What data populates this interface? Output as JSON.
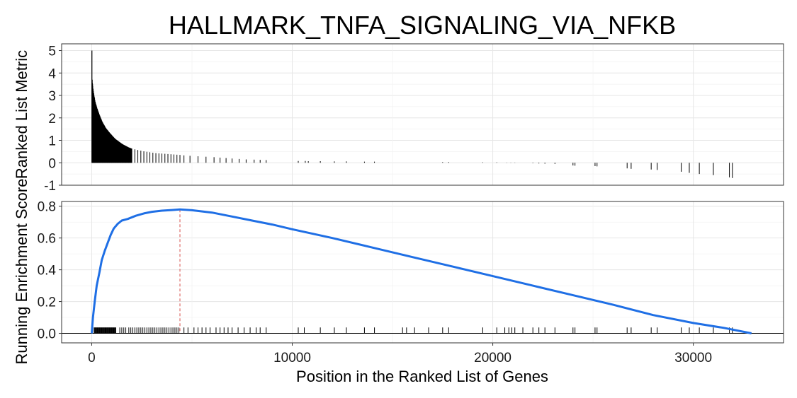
{
  "chart_data": [
    {
      "panel": "ranked-list-metric",
      "type": "bar",
      "title": "HALLMARK_TNFA_SIGNALING_VIA_NFKB",
      "ylabel": "Ranked List Metric",
      "xlim": [
        -1500,
        34500
      ],
      "ylim": [
        -1,
        5.3
      ],
      "yticks": [
        -1,
        0,
        1,
        2,
        3,
        4,
        5
      ],
      "grid": true,
      "bars": [
        {
          "x": 10,
          "y": 5.0
        },
        {
          "x": 25,
          "y": 3.7
        },
        {
          "x": 45,
          "y": 3.5
        },
        {
          "x": 70,
          "y": 3.3
        },
        {
          "x": 100,
          "y": 3.1
        },
        {
          "x": 140,
          "y": 2.9
        },
        {
          "x": 180,
          "y": 2.7
        },
        {
          "x": 230,
          "y": 2.55
        },
        {
          "x": 280,
          "y": 2.4
        },
        {
          "x": 340,
          "y": 2.25
        },
        {
          "x": 400,
          "y": 2.1
        },
        {
          "x": 470,
          "y": 1.95
        },
        {
          "x": 540,
          "y": 1.8
        },
        {
          "x": 620,
          "y": 1.68
        },
        {
          "x": 700,
          "y": 1.55
        },
        {
          "x": 790,
          "y": 1.45
        },
        {
          "x": 880,
          "y": 1.35
        },
        {
          "x": 980,
          "y": 1.25
        },
        {
          "x": 1080,
          "y": 1.15
        },
        {
          "x": 1190,
          "y": 1.05
        },
        {
          "x": 1300,
          "y": 0.98
        },
        {
          "x": 1420,
          "y": 0.9
        },
        {
          "x": 1550,
          "y": 0.82
        },
        {
          "x": 1700,
          "y": 0.75
        },
        {
          "x": 1850,
          "y": 0.68
        },
        {
          "x": 2000,
          "y": 0.63
        },
        {
          "x": 2150,
          "y": 0.6
        },
        {
          "x": 2300,
          "y": 0.57
        },
        {
          "x": 2450,
          "y": 0.54
        },
        {
          "x": 2600,
          "y": 0.51
        },
        {
          "x": 2750,
          "y": 0.49
        },
        {
          "x": 2900,
          "y": 0.47
        },
        {
          "x": 3050,
          "y": 0.45
        },
        {
          "x": 3200,
          "y": 0.43
        },
        {
          "x": 3350,
          "y": 0.42
        },
        {
          "x": 3500,
          "y": 0.41
        },
        {
          "x": 3650,
          "y": 0.4
        },
        {
          "x": 3800,
          "y": 0.39
        },
        {
          "x": 3950,
          "y": 0.38
        },
        {
          "x": 4100,
          "y": 0.37
        },
        {
          "x": 4250,
          "y": 0.36
        },
        {
          "x": 4400,
          "y": 0.35
        },
        {
          "x": 4600,
          "y": 0.33
        },
        {
          "x": 4900,
          "y": 0.31
        },
        {
          "x": 5300,
          "y": 0.29
        },
        {
          "x": 5700,
          "y": 0.27
        },
        {
          "x": 6100,
          "y": 0.25
        },
        {
          "x": 6400,
          "y": 0.23
        },
        {
          "x": 6700,
          "y": 0.21
        },
        {
          "x": 7000,
          "y": 0.19
        },
        {
          "x": 7350,
          "y": 0.17
        },
        {
          "x": 7700,
          "y": 0.15
        },
        {
          "x": 8100,
          "y": 0.14
        },
        {
          "x": 8400,
          "y": 0.13
        },
        {
          "x": 8700,
          "y": 0.12
        },
        {
          "x": 10300,
          "y": 0.08
        },
        {
          "x": 10650,
          "y": 0.08
        },
        {
          "x": 10800,
          "y": 0.07
        },
        {
          "x": 11400,
          "y": 0.07
        },
        {
          "x": 12100,
          "y": 0.06
        },
        {
          "x": 12700,
          "y": 0.06
        },
        {
          "x": 13600,
          "y": 0.05
        },
        {
          "x": 14100,
          "y": 0.05
        },
        {
          "x": 17500,
          "y": 0.03
        },
        {
          "x": 17800,
          "y": 0.03
        },
        {
          "x": 19500,
          "y": 0.02
        },
        {
          "x": 20200,
          "y": 0.02
        },
        {
          "x": 20700,
          "y": 0.01
        },
        {
          "x": 20900,
          "y": 0.01
        },
        {
          "x": 21100,
          "y": 0.01
        },
        {
          "x": 21500,
          "y": 0.0
        },
        {
          "x": 22000,
          "y": -0.02
        },
        {
          "x": 22300,
          "y": -0.03
        },
        {
          "x": 22600,
          "y": -0.04
        },
        {
          "x": 23100,
          "y": -0.05
        },
        {
          "x": 24000,
          "y": -0.12
        },
        {
          "x": 24100,
          "y": -0.13
        },
        {
          "x": 25100,
          "y": -0.15
        },
        {
          "x": 25200,
          "y": -0.16
        },
        {
          "x": 26700,
          "y": -0.25
        },
        {
          "x": 26900,
          "y": -0.27
        },
        {
          "x": 27900,
          "y": -0.3
        },
        {
          "x": 28200,
          "y": -0.32
        },
        {
          "x": 29400,
          "y": -0.4
        },
        {
          "x": 29800,
          "y": -0.45
        },
        {
          "x": 30300,
          "y": -0.5
        },
        {
          "x": 31000,
          "y": -0.55
        },
        {
          "x": 31800,
          "y": -0.65
        },
        {
          "x": 31950,
          "y": -0.68
        }
      ]
    },
    {
      "panel": "running-enrichment-score",
      "type": "line",
      "xlabel": "Position in the Ranked List of Genes",
      "ylabel": "Running Enrichment Score",
      "xlim": [
        -1500,
        34500
      ],
      "ylim": [
        -0.06,
        0.83
      ],
      "xticks": [
        0,
        10000,
        20000,
        30000
      ],
      "yticks": [
        0.0,
        0.2,
        0.4,
        0.6,
        0.8
      ],
      "grid": true,
      "series": [
        {
          "color": "#1F6FE5",
          "points": [
            {
              "x": 0,
              "y": 0.0
            },
            {
              "x": 60,
              "y": 0.1
            },
            {
              "x": 150,
              "y": 0.2
            },
            {
              "x": 250,
              "y": 0.3
            },
            {
              "x": 380,
              "y": 0.38
            },
            {
              "x": 500,
              "y": 0.46
            },
            {
              "x": 650,
              "y": 0.52
            },
            {
              "x": 800,
              "y": 0.57
            },
            {
              "x": 950,
              "y": 0.62
            },
            {
              "x": 1100,
              "y": 0.66
            },
            {
              "x": 1300,
              "y": 0.69
            },
            {
              "x": 1500,
              "y": 0.71
            },
            {
              "x": 1800,
              "y": 0.72
            },
            {
              "x": 2200,
              "y": 0.74
            },
            {
              "x": 2600,
              "y": 0.755
            },
            {
              "x": 3000,
              "y": 0.765
            },
            {
              "x": 3500,
              "y": 0.772
            },
            {
              "x": 4000,
              "y": 0.776
            },
            {
              "x": 4400,
              "y": 0.78
            },
            {
              "x": 5000,
              "y": 0.775
            },
            {
              "x": 6000,
              "y": 0.76
            },
            {
              "x": 7000,
              "y": 0.735
            },
            {
              "x": 8000,
              "y": 0.71
            },
            {
              "x": 9000,
              "y": 0.685
            },
            {
              "x": 10000,
              "y": 0.655
            },
            {
              "x": 12000,
              "y": 0.6
            },
            {
              "x": 14000,
              "y": 0.54
            },
            {
              "x": 16000,
              "y": 0.48
            },
            {
              "x": 18000,
              "y": 0.42
            },
            {
              "x": 20000,
              "y": 0.36
            },
            {
              "x": 22000,
              "y": 0.3
            },
            {
              "x": 24000,
              "y": 0.24
            },
            {
              "x": 26000,
              "y": 0.18
            },
            {
              "x": 28000,
              "y": 0.115
            },
            {
              "x": 30000,
              "y": 0.065
            },
            {
              "x": 31500,
              "y": 0.035
            },
            {
              "x": 32900,
              "y": 0.0
            }
          ]
        }
      ],
      "reference_line": {
        "x": 4400,
        "color": "#d9534f",
        "style": "dashed"
      },
      "zero_line": {
        "y": 0.0,
        "color": "#000000"
      },
      "gene_hits_x": [
        120,
        150,
        180,
        210,
        240,
        270,
        300,
        330,
        360,
        390,
        420,
        450,
        480,
        510,
        540,
        570,
        600,
        630,
        660,
        690,
        720,
        750,
        780,
        810,
        840,
        870,
        900,
        930,
        960,
        990,
        1020,
        1050,
        1080,
        1110,
        1140,
        1170,
        1200,
        1400,
        1500,
        1600,
        1700,
        1850,
        1950,
        2050,
        2150,
        2250,
        2350,
        2450,
        2550,
        2650,
        2750,
        2850,
        2950,
        3050,
        3150,
        3250,
        3350,
        3450,
        3550,
        3650,
        3750,
        3850,
        3950,
        4050,
        4150,
        4250,
        4350,
        4600,
        4800,
        5100,
        5300,
        5500,
        5700,
        5900,
        6200,
        6400,
        6600,
        6800,
        7000,
        7300,
        7600,
        7900,
        8200,
        8400,
        8700,
        10300,
        10600,
        11400,
        12100,
        12700,
        13600,
        14100,
        15500,
        15700,
        16100,
        16800,
        17500,
        17800,
        19500,
        20200,
        20600,
        20800,
        20950,
        21100,
        21500,
        22000,
        22300,
        22600,
        23100,
        24000,
        24100,
        25100,
        25200,
        26700,
        26900,
        27900,
        28200,
        29400,
        29800,
        30300,
        31000,
        31800,
        31950
      ]
    }
  ]
}
